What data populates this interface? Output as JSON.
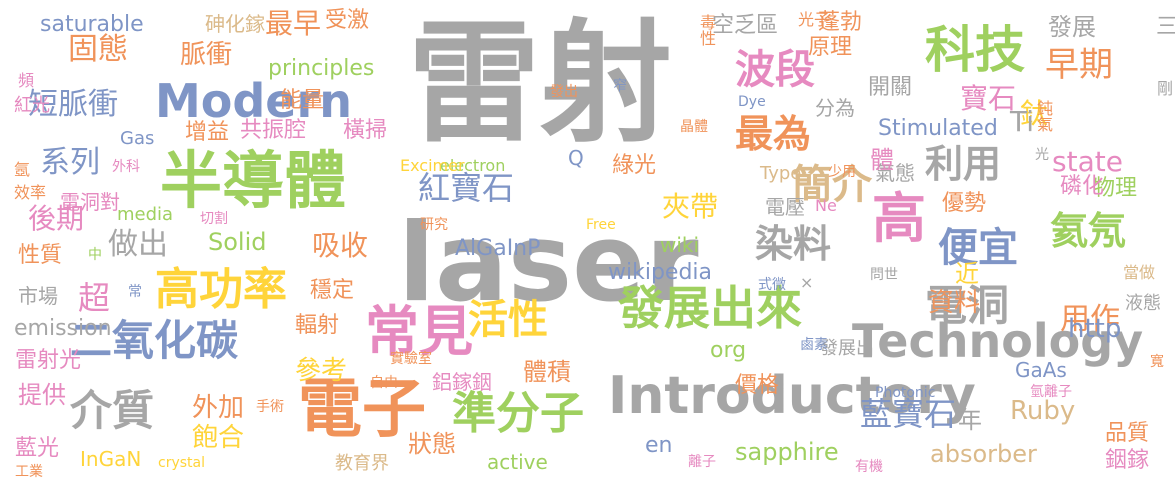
{
  "palette": {
    "gray": "#a6a6a6",
    "orange": "#f0935a",
    "blue": "#7f95c6",
    "green": "#9fd05f",
    "pink": "#e68ac0",
    "tan": "#dbba8a",
    "yellow": "#ffd43a"
  },
  "words": [
    {
      "text": "雷射",
      "color": "gray"
    },
    {
      "text": "laser",
      "color": "gray"
    },
    {
      "text": "半導體",
      "color": "green"
    },
    {
      "text": "Modern",
      "color": "blue"
    },
    {
      "text": "科技",
      "color": "green"
    },
    {
      "text": "高",
      "color": "pink"
    },
    {
      "text": "電子",
      "color": "orange"
    },
    {
      "text": "常見",
      "color": "pink"
    },
    {
      "text": "Introductory",
      "color": "gray"
    },
    {
      "text": "Technology",
      "color": "gray"
    },
    {
      "text": "發展出來",
      "color": "green"
    },
    {
      "text": "高功率",
      "color": "yellow"
    },
    {
      "text": "二氧化碳",
      "color": "blue"
    },
    {
      "text": "準分子",
      "color": "green"
    },
    {
      "text": "介質",
      "color": "gray"
    },
    {
      "text": "活性",
      "color": "yellow"
    },
    {
      "text": "染料",
      "color": "gray"
    },
    {
      "text": "便宜",
      "color": "blue"
    },
    {
      "text": "氦氖",
      "color": "green"
    },
    {
      "text": "電洞",
      "color": "gray"
    },
    {
      "text": "波段",
      "color": "pink"
    },
    {
      "text": "最為",
      "color": "orange"
    },
    {
      "text": "簡介",
      "color": "tan"
    },
    {
      "text": "利用",
      "color": "gray"
    },
    {
      "text": "早期",
      "color": "orange"
    },
    {
      "text": "紅寶石",
      "color": "blue"
    },
    {
      "text": "藍寶石",
      "color": "blue"
    },
    {
      "text": "固態",
      "color": "orange"
    },
    {
      "text": "短脈衝",
      "color": "blue"
    },
    {
      "text": "最早",
      "color": "orange"
    },
    {
      "text": "脈衝",
      "color": "orange"
    },
    {
      "text": "寶石",
      "color": "pink"
    },
    {
      "text": "鈦",
      "color": "yellow"
    },
    {
      "text": "Ti",
      "color": "gray"
    },
    {
      "text": "state",
      "color": "pink"
    },
    {
      "text": "Solid",
      "color": "green"
    },
    {
      "text": "Ruby",
      "color": "tan"
    },
    {
      "text": "absorber",
      "color": "tan"
    },
    {
      "text": "sapphire",
      "color": "green"
    },
    {
      "text": "wikipedia",
      "color": "blue"
    },
    {
      "text": "principles",
      "color": "green"
    },
    {
      "text": "saturable",
      "color": "blue"
    },
    {
      "text": "emission",
      "color": "gray"
    },
    {
      "text": "Stimulated",
      "color": "blue"
    },
    {
      "text": "能量",
      "color": "orange"
    },
    {
      "text": "系列",
      "color": "blue"
    },
    {
      "text": "後期",
      "color": "pink"
    },
    {
      "text": "超",
      "color": "pink"
    },
    {
      "text": "做出",
      "color": "gray"
    },
    {
      "text": "吸收",
      "color": "orange"
    },
    {
      "text": "用作",
      "color": "orange"
    },
    {
      "text": "資料",
      "color": "orange"
    },
    {
      "text": "夾帶",
      "color": "yellow"
    },
    {
      "text": "提供",
      "color": "pink"
    },
    {
      "text": "外加",
      "color": "orange"
    },
    {
      "text": "飽合",
      "color": "yellow"
    },
    {
      "text": "狀態",
      "color": "orange"
    },
    {
      "text": "體積",
      "color": "orange"
    },
    {
      "text": "鋁鎵銦",
      "color": "pink"
    },
    {
      "text": "參考",
      "color": "yellow"
    },
    {
      "text": "輻射",
      "color": "orange"
    },
    {
      "text": "穩定",
      "color": "orange"
    },
    {
      "text": "市場",
      "color": "gray"
    },
    {
      "text": "性質",
      "color": "orange"
    },
    {
      "text": "受激",
      "color": "orange"
    },
    {
      "text": "增益",
      "color": "orange"
    },
    {
      "text": "共振腔",
      "color": "pink"
    },
    {
      "text": "橫掃",
      "color": "pink"
    },
    {
      "text": "雷射光",
      "color": "pink"
    },
    {
      "text": "藍光",
      "color": "pink"
    },
    {
      "text": "InGaN",
      "color": "yellow"
    },
    {
      "text": "active",
      "color": "green"
    },
    {
      "text": "en",
      "color": "blue"
    },
    {
      "text": "http",
      "color": "blue"
    },
    {
      "text": "org",
      "color": "green"
    },
    {
      "text": "wiki",
      "color": "green"
    },
    {
      "text": "發展",
      "color": "gray"
    },
    {
      "text": "空乏區",
      "color": "gray"
    },
    {
      "text": "蓬勃",
      "color": "orange"
    },
    {
      "text": "原理",
      "color": "orange"
    },
    {
      "text": "開關",
      "color": "gray"
    },
    {
      "text": "分為",
      "color": "gray"
    },
    {
      "text": "電壓",
      "color": "gray"
    },
    {
      "text": "氣態",
      "color": "gray"
    },
    {
      "text": "物理",
      "color": "green"
    },
    {
      "text": "磷化",
      "color": "pink"
    },
    {
      "text": "優勢",
      "color": "orange"
    },
    {
      "text": "綠光",
      "color": "orange"
    },
    {
      "text": "價格",
      "color": "orange"
    },
    {
      "text": "品質",
      "color": "orange"
    },
    {
      "text": "銦鎵",
      "color": "pink"
    },
    {
      "text": "年",
      "color": "gray"
    },
    {
      "text": "近",
      "color": "yellow"
    },
    {
      "text": "體",
      "color": "pink"
    },
    {
      "text": "Type",
      "color": "tan"
    },
    {
      "text": "Q",
      "color": "blue"
    },
    {
      "text": "AlGaInP",
      "color": "blue"
    },
    {
      "text": "Gas",
      "color": "blue"
    },
    {
      "text": "media",
      "color": "green"
    },
    {
      "text": "electron",
      "color": "green"
    },
    {
      "text": "Excimer",
      "color": "yellow"
    },
    {
      "text": "Dye",
      "color": "blue"
    },
    {
      "text": "Ne",
      "color": "pink"
    },
    {
      "text": "GaAs",
      "color": "blue"
    },
    {
      "text": "Photonic",
      "color": "blue"
    },
    {
      "text": "crystal",
      "color": "yellow"
    },
    {
      "text": "Free",
      "color": "yellow"
    },
    {
      "text": "發展出",
      "color": "gray"
    },
    {
      "text": "電洞對",
      "color": "pink"
    },
    {
      "text": "砷化鎵",
      "color": "tan"
    },
    {
      "text": "紅光",
      "color": "pink"
    },
    {
      "text": "頻",
      "color": "pink"
    },
    {
      "text": "氬",
      "color": "orange"
    },
    {
      "text": "效率",
      "color": "orange"
    },
    {
      "text": "外科",
      "color": "pink"
    },
    {
      "text": "切割",
      "color": "pink"
    },
    {
      "text": "研究",
      "color": "orange"
    },
    {
      "text": "中",
      "color": "green"
    },
    {
      "text": "常",
      "color": "blue"
    },
    {
      "text": "實驗室",
      "color": "orange"
    },
    {
      "text": "自由",
      "color": "orange"
    },
    {
      "text": "工業",
      "color": "orange"
    },
    {
      "text": "手術",
      "color": "orange"
    },
    {
      "text": "教育界",
      "color": "tan"
    },
    {
      "text": "離子",
      "color": "pink"
    },
    {
      "text": "有機",
      "color": "pink"
    },
    {
      "text": "氫離子",
      "color": "pink"
    },
    {
      "text": "寬",
      "color": "orange"
    },
    {
      "text": "液態",
      "color": "gray"
    },
    {
      "text": "當做",
      "color": "tan"
    },
    {
      "text": "問世",
      "color": "gray"
    },
    {
      "text": "鹵素",
      "color": "blue"
    },
    {
      "text": "式微",
      "color": "blue"
    },
    {
      "text": "×",
      "color": "gray"
    },
    {
      "text": "毒性",
      "color": "orange"
    },
    {
      "text": "光子",
      "color": "orange"
    },
    {
      "text": "三",
      "color": "gray"
    },
    {
      "text": "發出",
      "color": "orange"
    },
    {
      "text": "窄",
      "color": "blue"
    },
    {
      "text": "晶體",
      "color": "orange"
    },
    {
      "text": "鈍氣",
      "color": "orange"
    },
    {
      "text": "剛",
      "color": "gray"
    },
    {
      "text": "少用",
      "color": "orange"
    },
    {
      "text": "光",
      "color": "gray"
    }
  ]
}
